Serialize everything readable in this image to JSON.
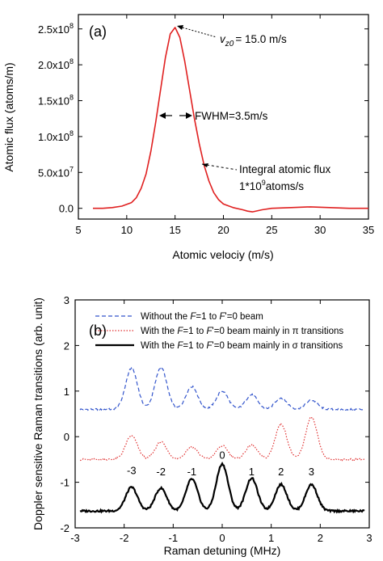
{
  "chart_data": [
    {
      "type": "line",
      "panel_label": "(a)",
      "xlabel": "Atomic velociy (m/s)",
      "ylabel": "Atomic flux (atoms/m)",
      "xlim": [
        5,
        35
      ],
      "ylim": [
        -15000000.0,
        270000000.0
      ],
      "x_ticks": [
        5,
        10,
        15,
        20,
        25,
        30,
        35
      ],
      "x_tick_labels": [
        "5",
        "10",
        "15",
        "20",
        "25",
        "30",
        "35"
      ],
      "y_ticks": [
        0,
        50000000.0,
        100000000.0,
        150000000.0,
        200000000.0,
        250000000.0
      ],
      "y_tick_labels": [
        "0.0",
        "5.0x10",
        "1.0x10",
        "1.5x10",
        "2.0x10",
        "2.5x10"
      ],
      "y_tick_exponents": [
        "",
        "7",
        "8",
        "8",
        "8",
        "8"
      ],
      "grid": false,
      "series": [
        {
          "color": "#e02020",
          "x": [
            6.5,
            7.5,
            8.5,
            9.5,
            10.5,
            11.0,
            11.5,
            12.0,
            12.5,
            13.0,
            13.5,
            14.0,
            14.5,
            15.0,
            15.5,
            16.0,
            16.5,
            17.0,
            17.5,
            18.0,
            18.5,
            19.0,
            19.5,
            20.0,
            21.0,
            22.0,
            22.5,
            23.0,
            24.0,
            25.0,
            27.0,
            29.0,
            31.0,
            33.0,
            35.0
          ],
          "y": [
            0,
            0,
            1000000.0,
            3000000.0,
            8000000.0,
            15000000.0,
            28000000.0,
            48000000.0,
            80000000.0,
            120000000.0,
            165000000.0,
            210000000.0,
            243000000.0,
            252000000.0,
            238000000.0,
            205000000.0,
            165000000.0,
            125000000.0,
            90000000.0,
            60000000.0,
            38000000.0,
            22000000.0,
            12000000.0,
            6000000.0,
            1000000.0,
            -2000000.0,
            -4000000.0,
            -5000000.0,
            -2000000.0,
            0,
            1000000.0,
            2000000.0,
            1000000.0,
            0,
            0
          ]
        }
      ],
      "annotations": {
        "peak_symbol": "v",
        "peak_sub": "z0",
        "peak_value": "= 15.0 m/s",
        "fwhm": "FWHM=3.5m/s",
        "integral_line1": "Integral atomic flux",
        "integral_line2_prefix": "1*10",
        "integral_line2_exp": "9",
        "integral_line2_suffix": "atoms/s"
      }
    },
    {
      "type": "line",
      "panel_label": "(b)",
      "xlabel": "Raman detuning (MHz)",
      "ylabel": "Doppler sensitive Raman transitions (arb. unit)",
      "xlim": [
        -3,
        3
      ],
      "ylim": [
        -2,
        3
      ],
      "x_ticks": [
        -3,
        -2,
        -1,
        0,
        1,
        2,
        3
      ],
      "x_tick_labels": [
        "-3",
        "-2",
        "-1",
        "0",
        "1",
        "2",
        "3"
      ],
      "y_ticks": [
        -2,
        -1,
        0,
        1,
        2,
        3
      ],
      "y_tick_labels": [
        "-2",
        "-1",
        "0",
        "1",
        "2",
        "3"
      ],
      "grid": false,
      "legend": {
        "placement": "top",
        "entries": [
          {
            "style": "dash",
            "color": "#3355cc",
            "pre": "Without the ",
            "f1": "F",
            "mid1": "=1 to ",
            "f2": "F",
            "mid2": "'=0 beam",
            "tail": ""
          },
          {
            "style": "dot",
            "color": "#e03030",
            "pre": "With the ",
            "f1": "F",
            "mid1": "=1 to ",
            "f2": "F",
            "mid2": "'=0 beam mainly in ",
            "tail": "π transitions"
          },
          {
            "style": "solid",
            "color": "#000000",
            "pre": "With the ",
            "f1": "F",
            "mid1": "=1 to ",
            "f2": "F",
            "mid2": "'=0 beam mainly in ",
            "tail": "σ transitions"
          }
        ]
      },
      "peak_positions": [
        -1.85,
        -1.25,
        -0.62,
        0.0,
        0.6,
        1.2,
        1.82
      ],
      "series": [
        {
          "style": "dash",
          "color": "#3355cc",
          "baseline": 0.6,
          "amplitudes": [
            0.9,
            0.92,
            0.5,
            0.4,
            0.32,
            0.25,
            0.2
          ],
          "width": 0.12
        },
        {
          "style": "dot",
          "color": "#e03030",
          "baseline": -0.5,
          "amplitudes": [
            0.52,
            0.38,
            0.28,
            0.3,
            0.32,
            0.78,
            0.92
          ],
          "width": 0.12
        },
        {
          "style": "solid",
          "color": "#000000",
          "baseline": -1.63,
          "amplitudes": [
            0.52,
            0.5,
            0.7,
            1.03,
            0.72,
            0.58,
            0.58
          ],
          "width": 0.12
        }
      ],
      "peak_labels": [
        "-3",
        "-2",
        "-1",
        "0",
        "1",
        "2",
        "3"
      ],
      "peak_label_y": [
        -0.82,
        -0.85,
        -0.85,
        -0.48,
        -0.85,
        -0.85,
        -0.85
      ]
    }
  ]
}
